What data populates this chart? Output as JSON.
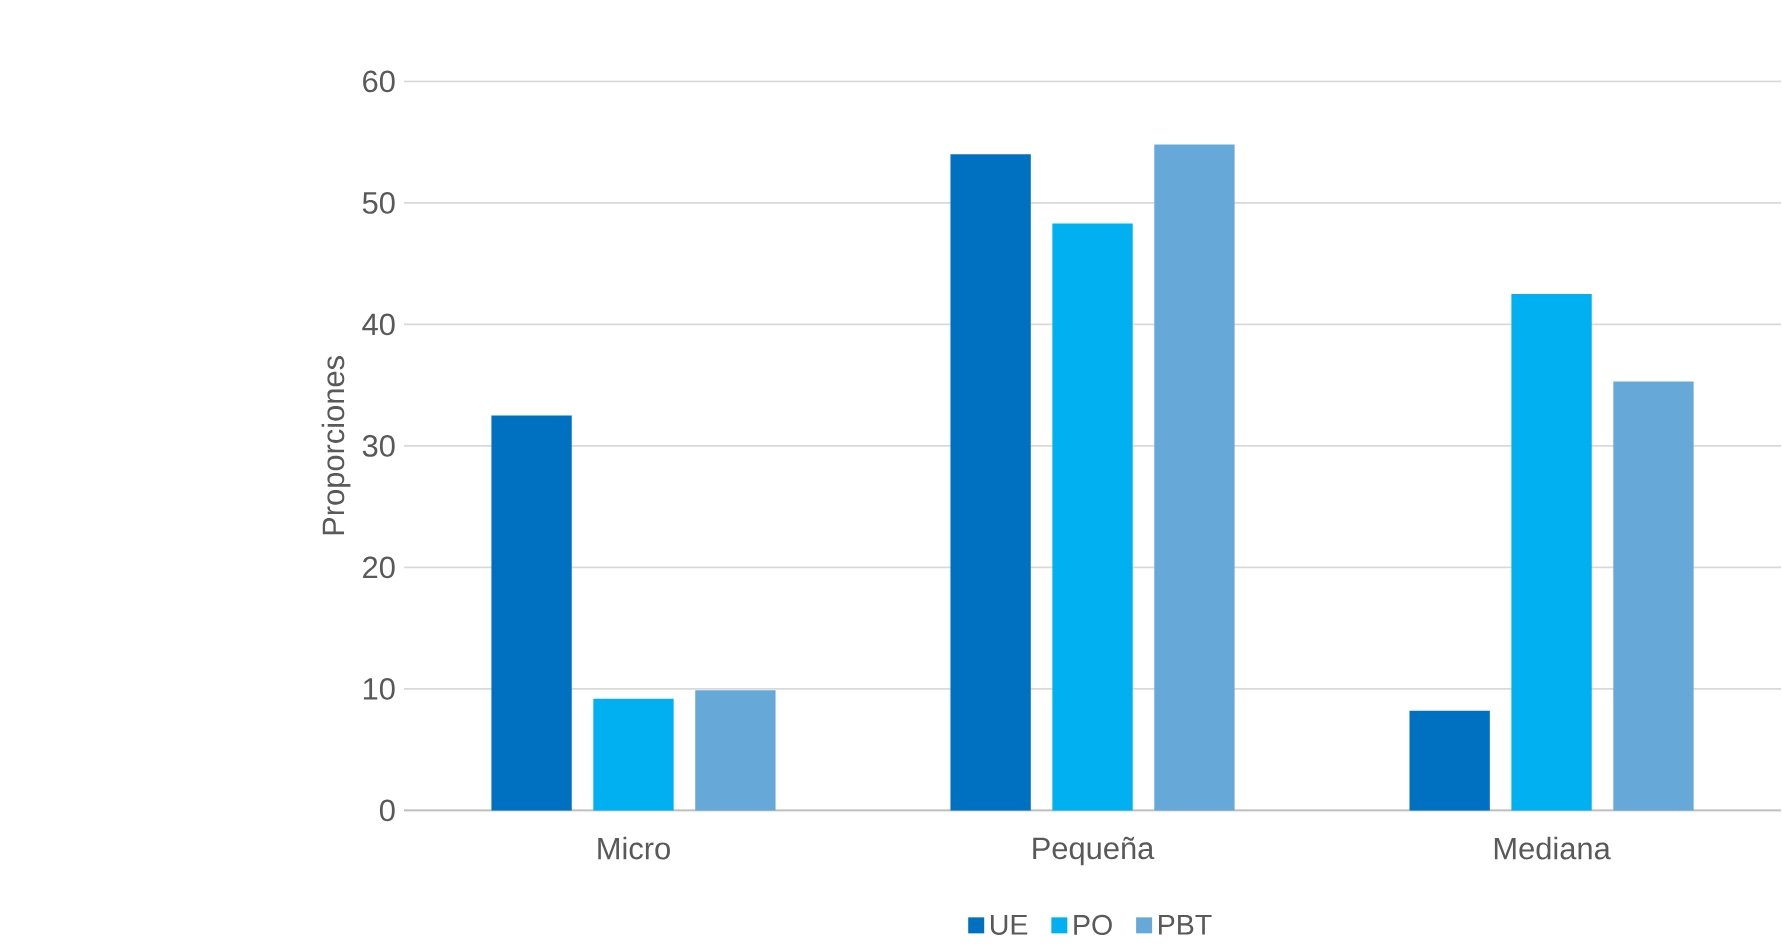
{
  "chart_data": {
    "type": "bar",
    "ylabel": "Proporciones",
    "categories": [
      "Micro",
      "Pequeña",
      "Mediana"
    ],
    "series": [
      {
        "name": "UE",
        "color": "#0070c0",
        "values": [
          32.5,
          54.0,
          8.2
        ]
      },
      {
        "name": "PO",
        "color": "#00b0f0",
        "values": [
          9.2,
          48.3,
          42.5
        ]
      },
      {
        "name": "PBT",
        "color": "#66a9d9",
        "values": [
          9.9,
          54.8,
          35.3
        ]
      }
    ],
    "ylim": [
      0,
      60
    ],
    "yticks": [
      0,
      10,
      20,
      30,
      40,
      50,
      60
    ],
    "grid": "y",
    "legend": "bottom"
  }
}
